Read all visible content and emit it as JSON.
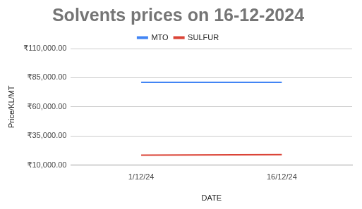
{
  "chart_data": {
    "type": "line",
    "title": "Solvents prices on 16-12-2024",
    "x_label": "DATE",
    "y_label": "Price/KL/MT",
    "categories": [
      "1/12/24",
      "16/12/24"
    ],
    "series": [
      {
        "name": "MTO",
        "color": "#4285f4",
        "values": [
          81000,
          81000
        ]
      },
      {
        "name": "SULFUR",
        "color": "#db4437",
        "values": [
          18500,
          19000
        ]
      }
    ],
    "ylim": [
      10000,
      110000
    ],
    "yticks": [
      {
        "value": 10000,
        "label": "₹10,000.00"
      },
      {
        "value": 35000,
        "label": "₹35,000.00"
      },
      {
        "value": 60000,
        "label": "₹60,000.00"
      },
      {
        "value": 85000,
        "label": "₹85,000.00"
      },
      {
        "value": 110000,
        "label": "₹110,000.00"
      }
    ],
    "grid": true,
    "legend": "top",
    "marker": "none"
  }
}
